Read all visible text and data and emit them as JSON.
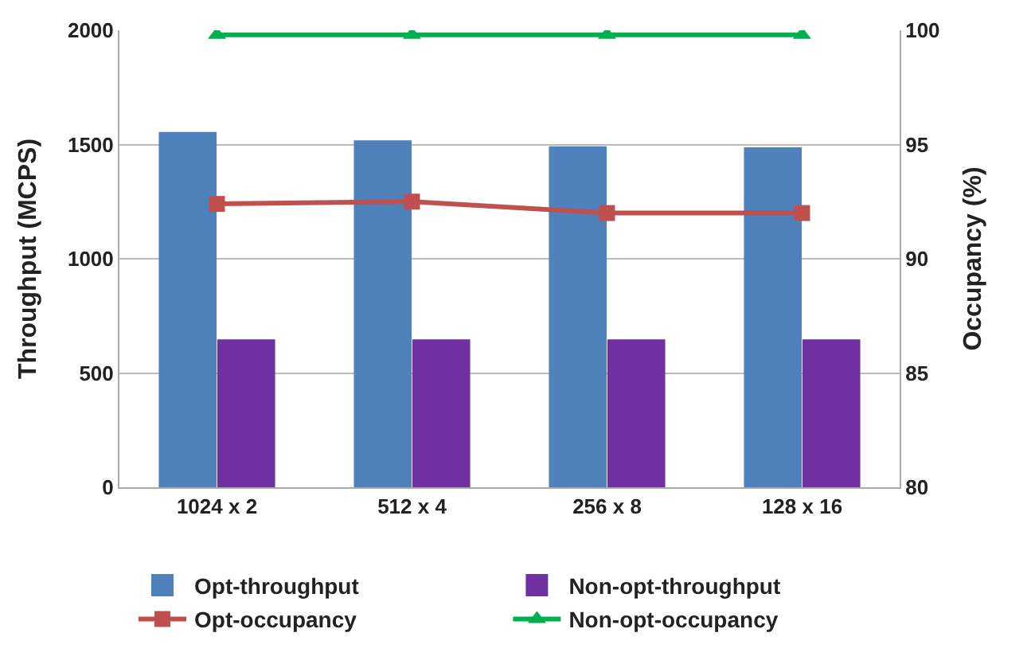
{
  "chart_data": {
    "type": "bar",
    "categories": [
      "1024 x 2",
      "512 x 4",
      "256 x 8",
      "128 x 16"
    ],
    "ylabel": "Throughput (MCPS)",
    "y2label": "Occupancy (%)",
    "series": [
      {
        "name": "Opt-throughput",
        "color": "#4f81bd",
        "values": [
          1548,
          1511,
          1485,
          1481
        ]
      },
      {
        "name": "Non-opt-throughput",
        "color": "#7030a0",
        "values": [
          640,
          640,
          640,
          640
        ]
      },
      {
        "name": "Opt-occupancy",
        "type": "line",
        "axis": "y2",
        "color": "#c0504d",
        "marker": "square",
        "values": [
          92.4,
          92.5,
          92.0,
          92.0
        ]
      },
      {
        "name": "Non-opt-occupancy",
        "type": "line",
        "axis": "y2",
        "color": "#00b050",
        "marker": "triangle",
        "values": [
          99.8,
          99.8,
          99.8,
          99.8
        ]
      }
    ],
    "ylim": [
      0,
      2000
    ],
    "yticks": [
      0,
      500,
      1000,
      1500,
      2000
    ],
    "y2lim": [
      80,
      100
    ],
    "y2ticks": [
      80,
      85,
      90,
      95,
      100
    ],
    "grid": "y",
    "legend": "bottom"
  }
}
